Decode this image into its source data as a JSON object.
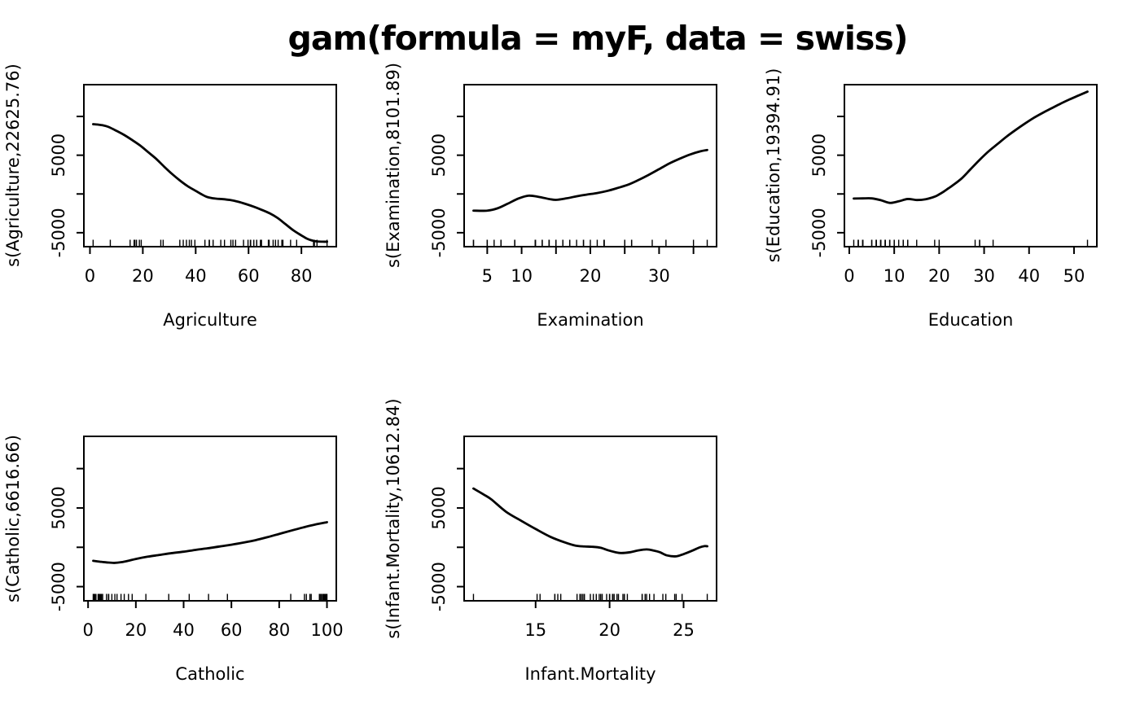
{
  "title": "gam(formula = myF, data = swiss)",
  "colors": {
    "line": "#000000",
    "background": "#ffffff",
    "text": "#000000"
  },
  "chart_data": [
    {
      "type": "line",
      "panel": "agriculture",
      "xlabel": "Agriculture",
      "ylabel": "s(Agriculture,22625.76)",
      "xlim": [
        -2.3,
        93.2
      ],
      "ylim": [
        -6800,
        14100
      ],
      "x_ticks": [
        {
          "v": 0,
          "l": "0"
        },
        {
          "v": 20,
          "l": "20"
        },
        {
          "v": 40,
          "l": "40"
        },
        {
          "v": 60,
          "l": "60"
        },
        {
          "v": 80,
          "l": "80"
        }
      ],
      "y_ticks": [
        {
          "v": -5000,
          "l": "-5000"
        },
        {
          "v": 0,
          "l": ""
        },
        {
          "v": 5000,
          "l": "5000"
        },
        {
          "v": 10000,
          "l": ""
        }
      ],
      "curve": [
        [
          1.2,
          9000
        ],
        [
          3,
          8950
        ],
        [
          5,
          8850
        ],
        [
          7,
          8650
        ],
        [
          10,
          8150
        ],
        [
          13,
          7600
        ],
        [
          16,
          6950
        ],
        [
          19,
          6250
        ],
        [
          22,
          5400
        ],
        [
          25,
          4550
        ],
        [
          28,
          3550
        ],
        [
          31,
          2600
        ],
        [
          34,
          1750
        ],
        [
          37,
          1000
        ],
        [
          40,
          400
        ],
        [
          42,
          0
        ],
        [
          44,
          -350
        ],
        [
          46,
          -530
        ],
        [
          48,
          -620
        ],
        [
          50,
          -660
        ],
        [
          53,
          -780
        ],
        [
          56,
          -1000
        ],
        [
          59,
          -1300
        ],
        [
          62,
          -1650
        ],
        [
          65,
          -2050
        ],
        [
          68,
          -2500
        ],
        [
          71,
          -3100
        ],
        [
          74,
          -3900
        ],
        [
          77,
          -4700
        ],
        [
          80,
          -5350
        ],
        [
          82,
          -5750
        ],
        [
          84,
          -6000
        ],
        [
          86,
          -6130
        ],
        [
          88,
          -6160
        ],
        [
          89.7,
          -6160
        ]
      ],
      "rug": [
        17,
        45.1,
        39.7,
        36.5,
        43.5,
        35.3,
        70.2,
        67.8,
        53.3,
        45.2,
        64.5,
        62,
        67.5,
        60.7,
        69.3,
        72.6,
        34,
        19.4,
        15.2,
        73,
        59.8,
        55.1,
        50.9,
        54.1,
        71.2,
        58.1,
        63.1,
        60.8,
        26.8,
        49.5,
        85.9,
        84.9,
        89.7,
        78.2,
        64.9,
        75.9,
        84.6,
        63.1,
        38.4,
        7.7,
        16.7,
        17.6,
        37.6,
        18.7,
        1.2,
        46.6,
        27.7
      ]
    },
    {
      "type": "line",
      "panel": "examination",
      "xlabel": "Examination",
      "ylabel": "s(Examination,8101.89)",
      "xlim": [
        1.64,
        38.36
      ],
      "ylim": [
        -6800,
        14100
      ],
      "x_ticks": [
        {
          "v": 5,
          "l": "5"
        },
        {
          "v": 10,
          "l": "10"
        },
        {
          "v": 15,
          "l": ""
        },
        {
          "v": 20,
          "l": "20"
        },
        {
          "v": 25,
          "l": ""
        },
        {
          "v": 30,
          "l": "30"
        },
        {
          "v": 35,
          "l": ""
        }
      ],
      "y_ticks": [
        {
          "v": -5000,
          "l": "-5000"
        },
        {
          "v": 0,
          "l": ""
        },
        {
          "v": 5000,
          "l": "5000"
        },
        {
          "v": 10000,
          "l": ""
        }
      ],
      "curve": [
        [
          3,
          -2150
        ],
        [
          5,
          -2150
        ],
        [
          6.5,
          -1850
        ],
        [
          8,
          -1250
        ],
        [
          9.5,
          -600
        ],
        [
          11,
          -220
        ],
        [
          12.5,
          -380
        ],
        [
          14,
          -650
        ],
        [
          15,
          -760
        ],
        [
          16.5,
          -570
        ],
        [
          18,
          -300
        ],
        [
          19.5,
          -80
        ],
        [
          21,
          120
        ],
        [
          22.5,
          400
        ],
        [
          24,
          780
        ],
        [
          25.5,
          1200
        ],
        [
          27,
          1800
        ],
        [
          28.5,
          2470
        ],
        [
          30,
          3200
        ],
        [
          31.5,
          3940
        ],
        [
          33,
          4550
        ],
        [
          34.5,
          5090
        ],
        [
          36,
          5500
        ],
        [
          37,
          5670
        ]
      ],
      "rug": [
        15,
        6,
        5,
        12,
        17,
        9,
        16,
        14,
        12,
        16,
        14,
        21,
        14,
        19,
        22,
        18,
        17,
        26,
        31,
        19,
        22,
        14,
        22,
        20,
        12,
        14,
        13,
        16,
        25,
        15,
        3,
        7,
        5,
        12,
        7,
        9,
        3,
        13,
        26,
        29,
        22,
        35,
        15,
        25,
        37,
        16,
        22
      ]
    },
    {
      "type": "line",
      "panel": "education",
      "xlabel": "Education",
      "ylabel": "s(Education,19394.91)",
      "xlim": [
        -1.08,
        55.08
      ],
      "ylim": [
        -6800,
        14100
      ],
      "x_ticks": [
        {
          "v": 0,
          "l": "0"
        },
        {
          "v": 10,
          "l": "10"
        },
        {
          "v": 20,
          "l": "20"
        },
        {
          "v": 30,
          "l": "30"
        },
        {
          "v": 40,
          "l": "40"
        },
        {
          "v": 50,
          "l": "50"
        }
      ],
      "y_ticks": [
        {
          "v": -5000,
          "l": "-5000"
        },
        {
          "v": 0,
          "l": ""
        },
        {
          "v": 5000,
          "l": "5000"
        },
        {
          "v": 10000,
          "l": ""
        }
      ],
      "curve": [
        [
          1,
          -590
        ],
        [
          3,
          -570
        ],
        [
          5,
          -570
        ],
        [
          7,
          -800
        ],
        [
          9,
          -1150
        ],
        [
          11,
          -950
        ],
        [
          13,
          -650
        ],
        [
          15,
          -780
        ],
        [
          17,
          -680
        ],
        [
          19,
          -350
        ],
        [
          20,
          -50
        ],
        [
          21,
          300
        ],
        [
          22,
          700
        ],
        [
          23,
          1100
        ],
        [
          25,
          2000
        ],
        [
          27,
          3200
        ],
        [
          29,
          4400
        ],
        [
          31,
          5500
        ],
        [
          33,
          6450
        ],
        [
          35,
          7400
        ],
        [
          37,
          8250
        ],
        [
          39,
          9050
        ],
        [
          41,
          9800
        ],
        [
          43,
          10450
        ],
        [
          45,
          11050
        ],
        [
          47,
          11650
        ],
        [
          49,
          12200
        ],
        [
          51,
          12700
        ],
        [
          53,
          13200
        ]
      ],
      "rug": [
        12,
        9,
        5,
        7,
        15,
        7,
        7,
        8,
        7,
        13,
        6,
        12,
        7,
        12,
        5,
        2,
        8,
        28,
        20,
        9,
        10,
        3,
        12,
        6,
        1,
        8,
        3,
        10,
        19,
        8,
        2,
        6,
        2,
        6,
        3,
        9,
        3,
        13,
        12,
        11,
        13,
        32,
        7,
        8,
        53,
        29,
        29
      ]
    },
    {
      "type": "line",
      "panel": "catholic",
      "xlabel": "Catholic",
      "ylabel": "s(Catholic,6616.66)",
      "xlim": [
        -1.76,
        103.91
      ],
      "ylim": [
        -6800,
        14100
      ],
      "x_ticks": [
        {
          "v": 0,
          "l": "0"
        },
        {
          "v": 20,
          "l": "20"
        },
        {
          "v": 40,
          "l": "40"
        },
        {
          "v": 60,
          "l": "60"
        },
        {
          "v": 80,
          "l": "80"
        },
        {
          "v": 100,
          "l": "100"
        }
      ],
      "y_ticks": [
        {
          "v": -5000,
          "l": "-5000"
        },
        {
          "v": 0,
          "l": ""
        },
        {
          "v": 5000,
          "l": "5000"
        },
        {
          "v": 10000,
          "l": ""
        }
      ],
      "curve": [
        [
          2.15,
          -1720
        ],
        [
          5,
          -1830
        ],
        [
          8,
          -1930
        ],
        [
          11,
          -1980
        ],
        [
          14,
          -1890
        ],
        [
          17,
          -1700
        ],
        [
          20,
          -1480
        ],
        [
          25,
          -1190
        ],
        [
          30,
          -970
        ],
        [
          35,
          -740
        ],
        [
          40,
          -560
        ],
        [
          45,
          -330
        ],
        [
          50,
          -130
        ],
        [
          55,
          100
        ],
        [
          60,
          330
        ],
        [
          65,
          600
        ],
        [
          70,
          900
        ],
        [
          75,
          1280
        ],
        [
          80,
          1700
        ],
        [
          85,
          2120
        ],
        [
          90,
          2520
        ],
        [
          95,
          2890
        ],
        [
          100,
          3190
        ]
      ],
      "rug": [
        9.96,
        84.84,
        93.4,
        33.77,
        5.16,
        90.57,
        92.85,
        97.16,
        97.67,
        91.38,
        98.61,
        8.52,
        2.27,
        4.43,
        2.82,
        24.2,
        3.3,
        12.11,
        2.15,
        2.84,
        5.23,
        4.52,
        15.14,
        4.2,
        2.4,
        5.23,
        2.56,
        7.72,
        18.46,
        6.1,
        99.71,
        99.68,
        100,
        98.96,
        98.22,
        99.06,
        99.46,
        96.83,
        5.62,
        13.79,
        11.22,
        16.92,
        4.97,
        8.65,
        42.34,
        50.43,
        58.33
      ]
    },
    {
      "type": "line",
      "panel": "infant-mortality",
      "xlabel": "Infant.Mortality",
      "ylabel": "s(Infant.Mortality,10612.84)",
      "xlim": [
        10.17,
        27.23
      ],
      "ylim": [
        -6800,
        14100
      ],
      "x_ticks": [
        {
          "v": 15,
          "l": "15"
        },
        {
          "v": 20,
          "l": "20"
        },
        {
          "v": 25,
          "l": "25"
        }
      ],
      "y_ticks": [
        {
          "v": -5000,
          "l": "-5000"
        },
        {
          "v": 0,
          "l": ""
        },
        {
          "v": 5000,
          "l": "5000"
        },
        {
          "v": 10000,
          "l": ""
        }
      ],
      "curve": [
        [
          10.8,
          7470
        ],
        [
          11.5,
          6700
        ],
        [
          12,
          6100
        ],
        [
          13,
          4520
        ],
        [
          14,
          3400
        ],
        [
          15,
          2330
        ],
        [
          16,
          1330
        ],
        [
          17,
          600
        ],
        [
          17.7,
          210
        ],
        [
          18.3,
          105
        ],
        [
          18.8,
          70
        ],
        [
          19.4,
          -60
        ],
        [
          19.9,
          -380
        ],
        [
          20.4,
          -625
        ],
        [
          20.8,
          -730
        ],
        [
          21.4,
          -625
        ],
        [
          21.9,
          -415
        ],
        [
          22.5,
          -270
        ],
        [
          23,
          -420
        ],
        [
          23.4,
          -625
        ],
        [
          23.9,
          -1040
        ],
        [
          24.5,
          -1145
        ],
        [
          25,
          -865
        ],
        [
          25.6,
          -415
        ],
        [
          26.1,
          0
        ],
        [
          26.4,
          150
        ],
        [
          26.6,
          130
        ]
      ],
      "rug": [
        22.2,
        22.2,
        20.2,
        20.3,
        20.6,
        26.6,
        23.6,
        24.9,
        21,
        24.4,
        24.5,
        16.5,
        19.1,
        22.7,
        18.7,
        21.2,
        20,
        20.2,
        10.8,
        20,
        18,
        22.4,
        16.7,
        15.3,
        21,
        23.8,
        18,
        16.3,
        20.9,
        22.5,
        15.1,
        19.8,
        18.3,
        19.4,
        20.2,
        17.8,
        16.3,
        18.1,
        20.3,
        20.5,
        18.9,
        23,
        20,
        19.5,
        18,
        18.2,
        19.3
      ]
    }
  ]
}
